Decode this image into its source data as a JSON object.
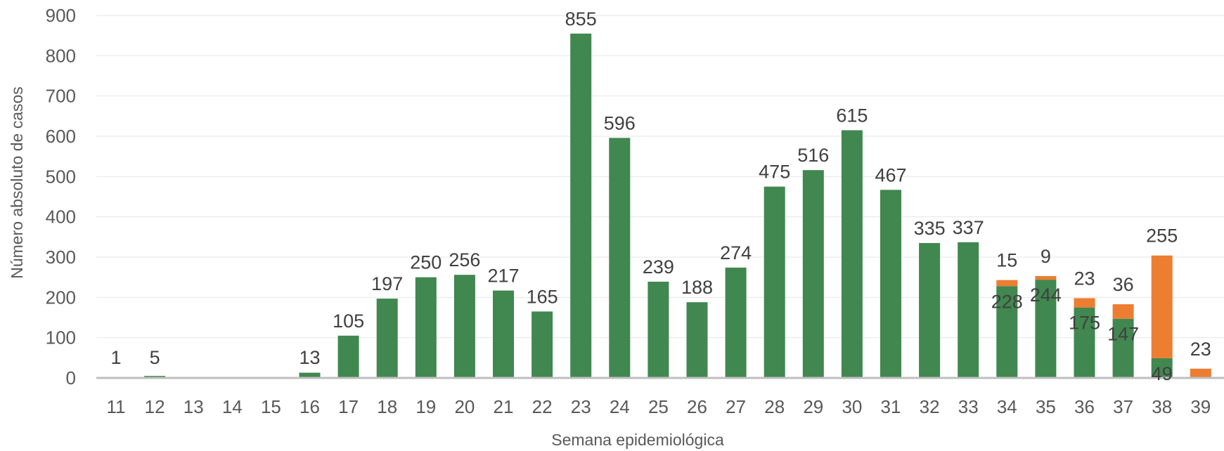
{
  "chart_data": {
    "type": "bar",
    "stacked": true,
    "title": "",
    "xlabel": "Semana epidemiológica",
    "ylabel": "Número absoluto de casos",
    "ylim": [
      0,
      900
    ],
    "yticks": [
      0,
      100,
      200,
      300,
      400,
      500,
      600,
      700,
      800,
      900
    ],
    "grid": true,
    "legend": "none",
    "categories": [
      "11",
      "12",
      "13",
      "14",
      "15",
      "16",
      "17",
      "18",
      "19",
      "20",
      "21",
      "22",
      "23",
      "24",
      "25",
      "26",
      "27",
      "28",
      "29",
      "30",
      "31",
      "32",
      "33",
      "34",
      "35",
      "36",
      "37",
      "38",
      "39"
    ],
    "series": [
      {
        "color": "#418750",
        "values": [
          1,
          5,
          0,
          0,
          0,
          13,
          105,
          197,
          250,
          256,
          217,
          165,
          855,
          596,
          239,
          188,
          274,
          475,
          516,
          615,
          467,
          335,
          337,
          228,
          244,
          175,
          147,
          49,
          0
        ]
      },
      {
        "color": "#ED7D31",
        "values": [
          0,
          0,
          0,
          0,
          0,
          0,
          0,
          0,
          0,
          0,
          0,
          0,
          0,
          0,
          0,
          0,
          0,
          0,
          0,
          0,
          0,
          0,
          0,
          15,
          9,
          23,
          36,
          255,
          23
        ]
      }
    ],
    "labels_green": [
      "1",
      "5",
      "",
      "",
      "",
      "13",
      "105",
      "197",
      "250",
      "256",
      "217",
      "165",
      "855",
      "596",
      "239",
      "188",
      "274",
      "475",
      "516",
      "615",
      "467",
      "335",
      "337",
      "228",
      "244",
      "175",
      "147",
      "49",
      ""
    ],
    "labels_orange": [
      "",
      "",
      "",
      "",
      "",
      "",
      "",
      "",
      "",
      "",
      "",
      "",
      "",
      "",
      "",
      "",
      "",
      "",
      "",
      "",
      "",
      "",
      "",
      "15",
      "9",
      "23",
      "36",
      "255",
      "23"
    ]
  }
}
